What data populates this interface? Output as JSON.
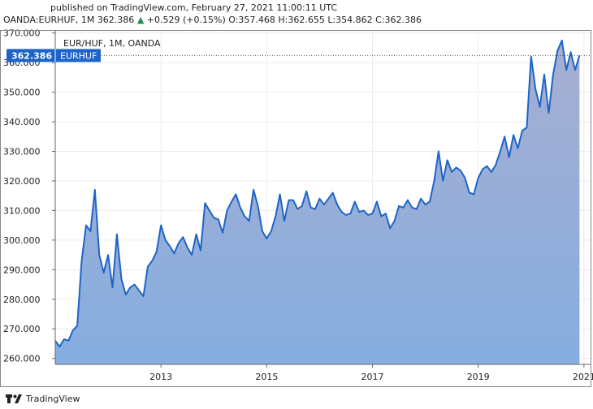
{
  "header": {
    "published": "published on TradingView.com, February 27, 2021 11:00:11 UTC",
    "symbol": "OANDA:EURHUF, 1M",
    "last": "362.386",
    "change_arrow": "▲",
    "change": "+0.529 (+0.15%)",
    "ohlc": "O:357.468 H:362.655 L:354.862 C:362.386"
  },
  "footer": {
    "brand": "TradingView",
    "icon": "tradingview-logo-icon"
  },
  "colors": {
    "line": "#1e64c8",
    "fill_top": "#a7aed0",
    "fill_bottom": "#86aee0",
    "badge": "#1e64c8",
    "up": "#1a8f4d"
  },
  "chart_data": {
    "type": "area",
    "legend": "EUR/HUF, 1M, OANDA",
    "price_label": "362.386",
    "price_label_name": "EURHUF",
    "ylim": [
      258,
      371
    ],
    "yticks": [
      260,
      270,
      280,
      290,
      300,
      310,
      320,
      330,
      340,
      350,
      360,
      370
    ],
    "ytick_labels": [
      "260.000",
      "270.000",
      "280.000",
      "290.000",
      "300.000",
      "310.000",
      "320.000",
      "330.000",
      "340.000",
      "350.000",
      "360.000",
      "370.000"
    ],
    "xlim": [
      2011.0,
      2021.125
    ],
    "xticks": [
      2013,
      2015,
      2017,
      2019,
      2021
    ],
    "xtick_labels": [
      "2013",
      "2015",
      "2017",
      "2019",
      "2021"
    ],
    "grid": true,
    "x_start": 2011.0,
    "x_step": 0.0833333,
    "values": [
      266,
      264,
      266.5,
      266,
      269.5,
      271,
      293,
      305,
      303,
      317,
      295,
      289,
      295,
      284,
      302,
      287,
      281.5,
      284,
      285,
      283,
      281,
      291,
      293,
      296,
      305,
      300,
      298,
      295.5,
      299,
      301,
      297.5,
      295,
      302,
      296.5,
      312.5,
      310,
      307.5,
      307,
      302.5,
      310,
      313,
      315.5,
      311,
      308,
      306.5,
      317,
      311.5,
      303,
      300.5,
      303,
      308,
      315.5,
      306.5,
      313.5,
      313.5,
      310.5,
      311.5,
      316.5,
      311,
      310.5,
      314,
      312,
      314,
      316,
      312,
      309.5,
      308.5,
      309,
      313,
      309.5,
      310,
      308.5,
      309,
      313,
      308,
      309,
      304,
      306.5,
      311.5,
      311,
      313.5,
      311,
      310.5,
      314,
      312,
      313,
      320,
      330,
      320,
      327,
      323,
      324.5,
      323.5,
      321,
      316,
      315.5,
      321,
      324,
      325,
      323,
      325.5,
      330,
      335,
      328,
      335.5,
      331,
      337,
      338,
      362,
      351,
      345,
      356,
      343,
      356,
      364,
      367.5,
      357.5,
      363.5,
      357.5,
      362.4
    ]
  }
}
